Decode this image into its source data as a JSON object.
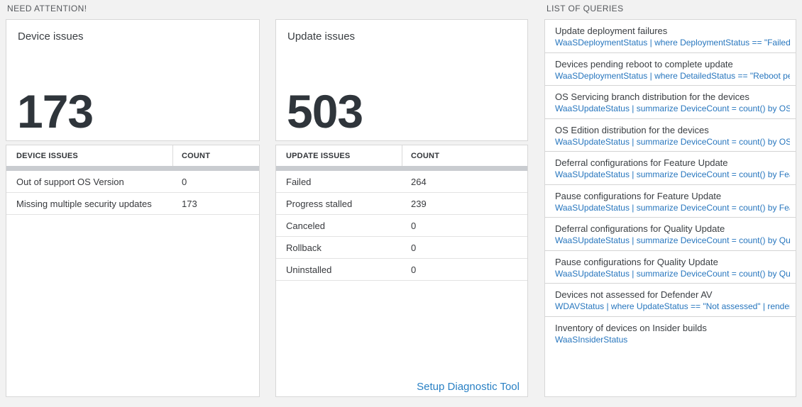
{
  "sections": {
    "need_attention": "NEED ATTENTION!",
    "list_of_queries": "LIST OF QUERIES"
  },
  "device_issues": {
    "title": "Device issues",
    "total": "173",
    "table": {
      "col1_header": "DEVICE ISSUES",
      "col2_header": "COUNT",
      "rows": [
        {
          "label": "Out of support OS Version",
          "count": "0"
        },
        {
          "label": "Missing multiple security updates",
          "count": "173"
        }
      ]
    }
  },
  "update_issues": {
    "title": "Update issues",
    "total": "503",
    "table": {
      "col1_header": "UPDATE ISSUES",
      "col2_header": "COUNT",
      "rows": [
        {
          "label": "Failed",
          "count": "264"
        },
        {
          "label": "Progress stalled",
          "count": "239"
        },
        {
          "label": "Canceled",
          "count": "0"
        },
        {
          "label": "Rollback",
          "count": "0"
        },
        {
          "label": "Uninstalled",
          "count": "0"
        }
      ]
    },
    "setup_link": "Setup Diagnostic Tool"
  },
  "queries": {
    "items": [
      {
        "title": "Update deployment failures",
        "query": "WaaSDeploymentStatus | where DeploymentStatus == \"Failed\" |..."
      },
      {
        "title": "Devices pending reboot to complete update",
        "query": "WaaSDeploymentStatus | where DetailedStatus == \"Reboot pend..."
      },
      {
        "title": "OS Servicing branch distribution for the devices",
        "query": "WaaSUpdateStatus | summarize DeviceCount = count() by OSSer..."
      },
      {
        "title": "OS Edition distribution for the devices",
        "query": "WaaSUpdateStatus | summarize DeviceCount = count() by OSEdit..."
      },
      {
        "title": "Deferral configurations for Feature Update",
        "query": "WaaSUpdateStatus | summarize DeviceCount = count() by Featur..."
      },
      {
        "title": "Pause configurations for Feature Update",
        "query": "WaaSUpdateStatus | summarize DeviceCount = count() by Featur..."
      },
      {
        "title": "Deferral configurations for Quality Update",
        "query": "WaaSUpdateStatus | summarize DeviceCount = count() by Qualit..."
      },
      {
        "title": "Pause configurations for Quality Update",
        "query": "WaaSUpdateStatus | summarize DeviceCount = count() by Qualit..."
      },
      {
        "title": "Devices not assessed for Defender AV",
        "query": "WDAVStatus | where UpdateStatus == \"Not assessed\" | render ta..."
      },
      {
        "title": "Inventory of devices on Insider builds",
        "query": "WaaSInsiderStatus"
      }
    ]
  },
  "colors": {
    "background": "#f2f2f2",
    "card_border": "#d7d7d7",
    "link_blue": "#2980c4",
    "query_blue": "#2776be",
    "big_number": "#2f353b",
    "table_bar": "#c9ccd0"
  }
}
